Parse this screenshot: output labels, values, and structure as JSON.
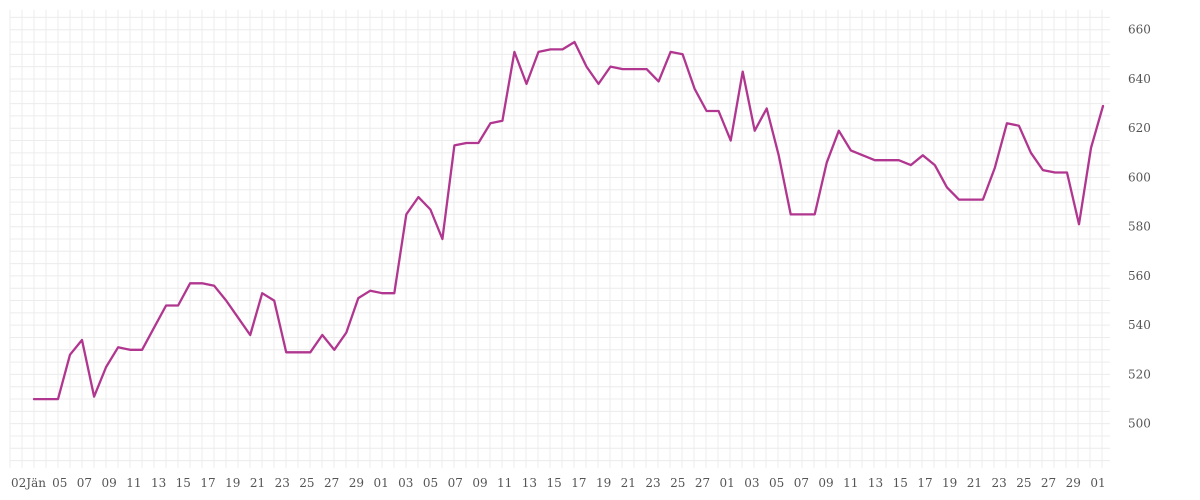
{
  "chart_data": {
    "type": "line",
    "title": "",
    "xlabel": "",
    "ylabel": "",
    "ylim": [
      482,
      668
    ],
    "y_ticks": [
      500,
      520,
      540,
      560,
      580,
      600,
      620,
      640,
      660
    ],
    "y_axis_side": "right",
    "grid": true,
    "legend": "none",
    "x_tick_labels": [
      "02Jän",
      "05",
      "07",
      "09",
      "11",
      "13",
      "15",
      "17",
      "19",
      "21",
      "23",
      "25",
      "27",
      "29",
      "01",
      "03",
      "05",
      "07",
      "09",
      "11",
      "13",
      "15",
      "17",
      "19",
      "21",
      "23",
      "25",
      "27",
      "01",
      "03",
      "05",
      "07",
      "09",
      "11",
      "13",
      "15",
      "17",
      "19",
      "21",
      "23",
      "25",
      "27",
      "29",
      "01"
    ],
    "series": [
      {
        "color": "#b0368f",
        "values": [
          510,
          510,
          510,
          528,
          534,
          511,
          523,
          531,
          530,
          530,
          539,
          548,
          548,
          557,
          557,
          556,
          550,
          543,
          536,
          553,
          550,
          529,
          529,
          529,
          536,
          530,
          537,
          551,
          554,
          553,
          553,
          585,
          592,
          587,
          575,
          613,
          614,
          614,
          622,
          623,
          651,
          638,
          651,
          652,
          652,
          655,
          645,
          638,
          645,
          644,
          644,
          644,
          639,
          651,
          650,
          636,
          627,
          627,
          615,
          643,
          619,
          628,
          609,
          585,
          585,
          585,
          606,
          619,
          611,
          609,
          607,
          607,
          607,
          605,
          609,
          605,
          596,
          591,
          591,
          591,
          604,
          622,
          621,
          610,
          603,
          602,
          602,
          581,
          612,
          629
        ]
      }
    ]
  }
}
